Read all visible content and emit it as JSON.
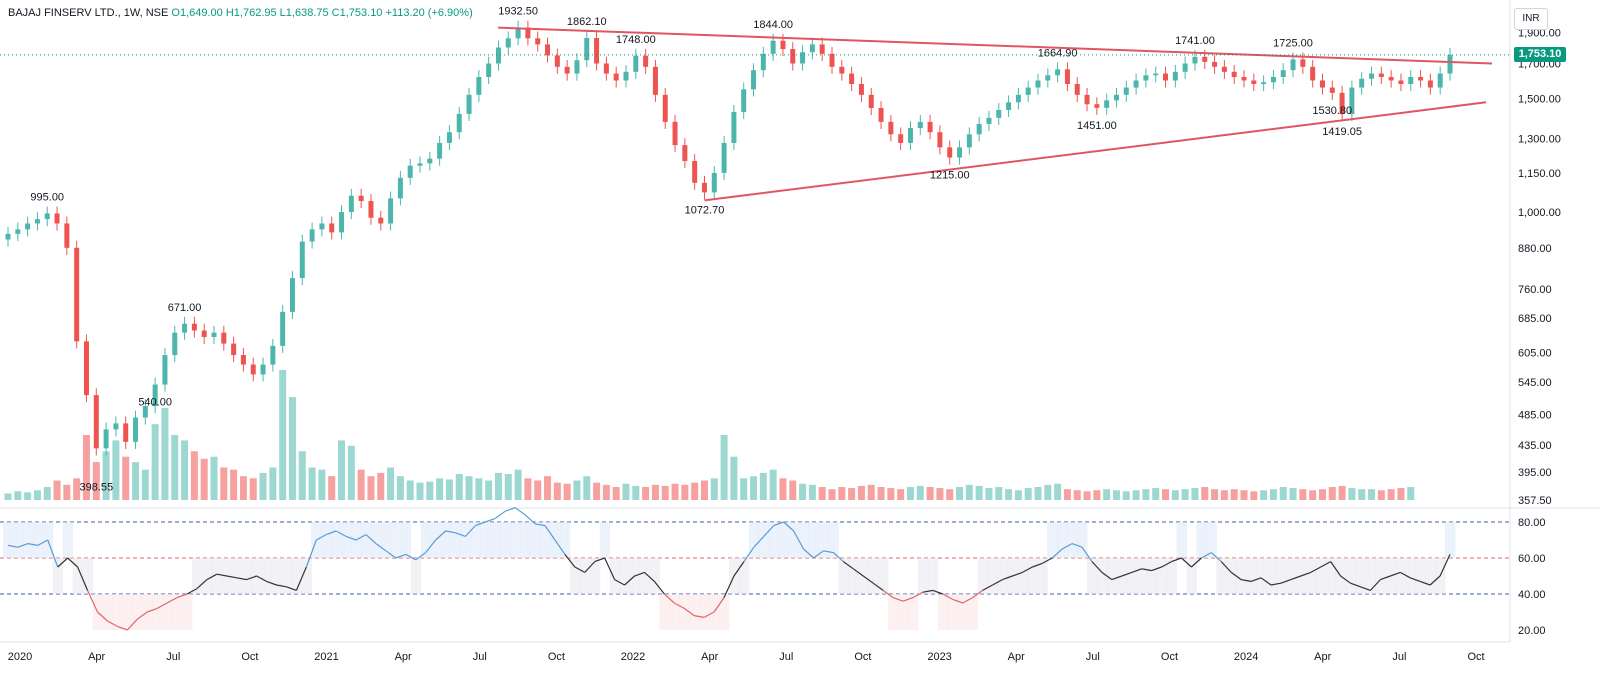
{
  "legend": {
    "symbol": "BAJAJ FINSERV LTD., 1W, NSE",
    "ohlc": "O1,649.00  H1,762.95  L1,638.75  C1,753.10  +113.20 (+6.90%)"
  },
  "currency_label": "INR",
  "current_price_tag": "1,753.10",
  "colors": {
    "up": "#4db6ac",
    "down": "#ef5350",
    "trendline": "#e0555f",
    "rsi_line_overbought": "#5b9bd5",
    "rsi_line_neutral": "#333333",
    "rsi_line_oversold": "#e06666"
  },
  "chart_data": [
    {
      "type": "line",
      "title": "",
      "series": [
        {
          "name": "price",
          "values": [
            925,
            940,
            960,
            975,
            995,
            960,
            880,
            630,
            520,
            430,
            460,
            470,
            440,
            480,
            500,
            540,
            600,
            650,
            671,
            655,
            640,
            650,
            625,
            600,
            580,
            560,
            580,
            620,
            700,
            790,
            900,
            940,
            960,
            930,
            1000,
            1060,
            1040,
            980,
            960,
            1050,
            1130,
            1180,
            1190,
            1210,
            1280,
            1330,
            1420,
            1520,
            1620,
            1700,
            1800,
            1860,
            1932.5,
            1860,
            1820,
            1750,
            1680,
            1640,
            1720,
            1862.1,
            1700,
            1640,
            1600,
            1650,
            1748,
            1680,
            1520,
            1380,
            1270,
            1200,
            1110,
            1072.7,
            1150,
            1280,
            1430,
            1550,
            1660,
            1760,
            1844,
            1790,
            1700,
            1770,
            1820,
            1760,
            1680,
            1640,
            1580,
            1520,
            1450,
            1380,
            1320,
            1280,
            1350,
            1380,
            1330,
            1260,
            1215,
            1260,
            1320,
            1370,
            1400,
            1440,
            1480,
            1520,
            1560,
            1600,
            1630,
            1664.9,
            1580,
            1520,
            1470,
            1451,
            1490,
            1520,
            1560,
            1600,
            1630,
            1640,
            1600,
            1650,
            1700,
            1741,
            1710,
            1680,
            1650,
            1620,
            1600,
            1580,
            1590,
            1620,
            1660,
            1725,
            1680,
            1600,
            1560,
            1530.8,
            1419.05,
            1560,
            1610,
            1640,
            1620,
            1600,
            1580,
            1620,
            1600,
            1560,
            1640,
            1753.1
          ]
        }
      ],
      "ylim": [
        357.5,
        2000
      ],
      "y_scale": "log",
      "ytick_labels": [
        "1,900.00",
        "1,700.00",
        "1,500.00",
        "1,300.00",
        "1,150.00",
        "1,000.00",
        "880.00",
        "760.00",
        "685.00",
        "605.00",
        "545.00",
        "485.00",
        "435.00",
        "395.00",
        "357.50"
      ],
      "xtick_labels": [
        "2020",
        "Apr",
        "Jul",
        "Oct",
        "2021",
        "Apr",
        "Jul",
        "Oct",
        "2022",
        "Apr",
        "Jul",
        "Oct",
        "2023",
        "Apr",
        "Jul",
        "Oct",
        "2024",
        "Apr",
        "Jul",
        "Oct"
      ],
      "annotations": [
        "995.00",
        "398.55",
        "671.00",
        "540.00",
        "1932.50",
        "1862.10",
        "1748.00",
        "1072.70",
        "1844.00",
        "1664.90",
        "1215.00",
        "1451.00",
        "1741.00",
        "1725.00",
        "1530.80",
        "1419.05"
      ],
      "trendlines": [
        {
          "name": "upper",
          "from": [
            1932.5
          ],
          "to": [
            1700
          ]
        },
        {
          "name": "lower",
          "from": [
            1072.7
          ],
          "to": [
            1480
          ]
        }
      ],
      "volume": [
        6,
        8,
        7,
        9,
        12,
        18,
        14,
        20,
        60,
        35,
        45,
        55,
        40,
        35,
        28,
        70,
        85,
        60,
        55,
        45,
        38,
        40,
        30,
        28,
        22,
        20,
        25,
        30,
        120,
        95,
        45,
        30,
        28,
        22,
        55,
        50,
        28,
        22,
        25,
        30,
        22,
        18,
        16,
        17,
        20,
        19,
        24,
        22,
        20,
        18,
        25,
        24,
        28,
        20,
        18,
        22,
        16,
        15,
        18,
        22,
        16,
        14,
        12,
        15,
        13,
        12,
        14,
        13,
        15,
        14,
        16,
        18,
        20,
        60,
        40,
        20,
        22,
        25,
        28,
        20,
        18,
        15,
        14,
        12,
        10,
        12,
        11,
        13,
        14,
        12,
        11,
        10,
        12,
        13,
        12,
        11,
        10,
        12,
        14,
        13,
        11,
        12,
        10,
        9,
        11,
        12,
        14,
        15,
        10,
        9,
        8,
        9,
        10,
        9,
        8,
        9,
        10,
        11,
        10,
        9,
        10,
        11,
        12,
        10,
        9,
        10,
        9,
        8,
        9,
        10,
        12,
        11,
        10,
        9,
        10,
        12,
        13,
        11,
        10,
        10,
        9,
        10,
        11,
        12
      ]
    },
    {
      "type": "line",
      "title": "",
      "series": [
        {
          "name": "rsi",
          "values": [
            67,
            66,
            68,
            67,
            70,
            55,
            60,
            55,
            42,
            30,
            25,
            22,
            20,
            26,
            30,
            32,
            35,
            38,
            40,
            43,
            48,
            51,
            50,
            49,
            48,
            50,
            47,
            45,
            44,
            42,
            55,
            70,
            73,
            75,
            72,
            70,
            73,
            68,
            64,
            60,
            62,
            59,
            63,
            70,
            75,
            74,
            72,
            78,
            80,
            82,
            86,
            88,
            84,
            79,
            78,
            70,
            62,
            55,
            52,
            58,
            60,
            48,
            45,
            50,
            52,
            47,
            40,
            35,
            32,
            28,
            27,
            30,
            38,
            50,
            58,
            66,
            72,
            78,
            80,
            75,
            65,
            60,
            64,
            63,
            58,
            54,
            50,
            46,
            42,
            38,
            36,
            38,
            41,
            42,
            40,
            37,
            35,
            38,
            42,
            45,
            48,
            50,
            52,
            55,
            57,
            60,
            65,
            68,
            66,
            58,
            52,
            48,
            50,
            52,
            54,
            53,
            55,
            58,
            60,
            55,
            60,
            63,
            58,
            52,
            48,
            47,
            49,
            45,
            46,
            48,
            50,
            52,
            55,
            58,
            50,
            46,
            44,
            42,
            48,
            50,
            52,
            49,
            47,
            45,
            50,
            62
          ]
        }
      ],
      "ylim": [
        20,
        80
      ],
      "ytick_labels": [
        "80.00",
        "60.00",
        "40.00",
        "20.00"
      ],
      "levels": [
        80,
        60,
        40
      ]
    }
  ]
}
